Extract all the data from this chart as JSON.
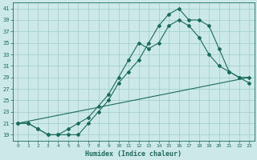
{
  "xlabel": "Humidex (Indice chaleur)",
  "bg_color": "#cce8e8",
  "grid_color": "#99cccc",
  "line_color": "#1a6b5a",
  "xlim": [
    -0.5,
    23.5
  ],
  "ylim": [
    18.0,
    42.0
  ],
  "xticks": [
    0,
    1,
    2,
    3,
    4,
    5,
    6,
    7,
    8,
    9,
    10,
    11,
    12,
    13,
    14,
    15,
    16,
    17,
    18,
    19,
    20,
    21,
    22,
    23
  ],
  "yticks": [
    19,
    21,
    23,
    25,
    27,
    29,
    31,
    33,
    35,
    37,
    39,
    41
  ],
  "line1_x": [
    0,
    1,
    2,
    3,
    4,
    5,
    6,
    7,
    8,
    9,
    10,
    11,
    12,
    13,
    14,
    15,
    16,
    17,
    18,
    19,
    20,
    21,
    22,
    23
  ],
  "line1_y": [
    21,
    21,
    20,
    19,
    19,
    19,
    19,
    21,
    23,
    25,
    28,
    30,
    32,
    35,
    38,
    40,
    41,
    39,
    39,
    38,
    34,
    30,
    29,
    28
  ],
  "line2_x": [
    0,
    1,
    2,
    3,
    4,
    5,
    6,
    7,
    8,
    9,
    10,
    11,
    12,
    13,
    14,
    15,
    16,
    17,
    18,
    19,
    20,
    21,
    22,
    23
  ],
  "line2_y": [
    21,
    21,
    20,
    19,
    19,
    20,
    21,
    22,
    24,
    26,
    29,
    32,
    35,
    34,
    35,
    38,
    39,
    38,
    36,
    33,
    31,
    30,
    29,
    29
  ],
  "line3_x": [
    0,
    23
  ],
  "line3_y": [
    21,
    29
  ]
}
